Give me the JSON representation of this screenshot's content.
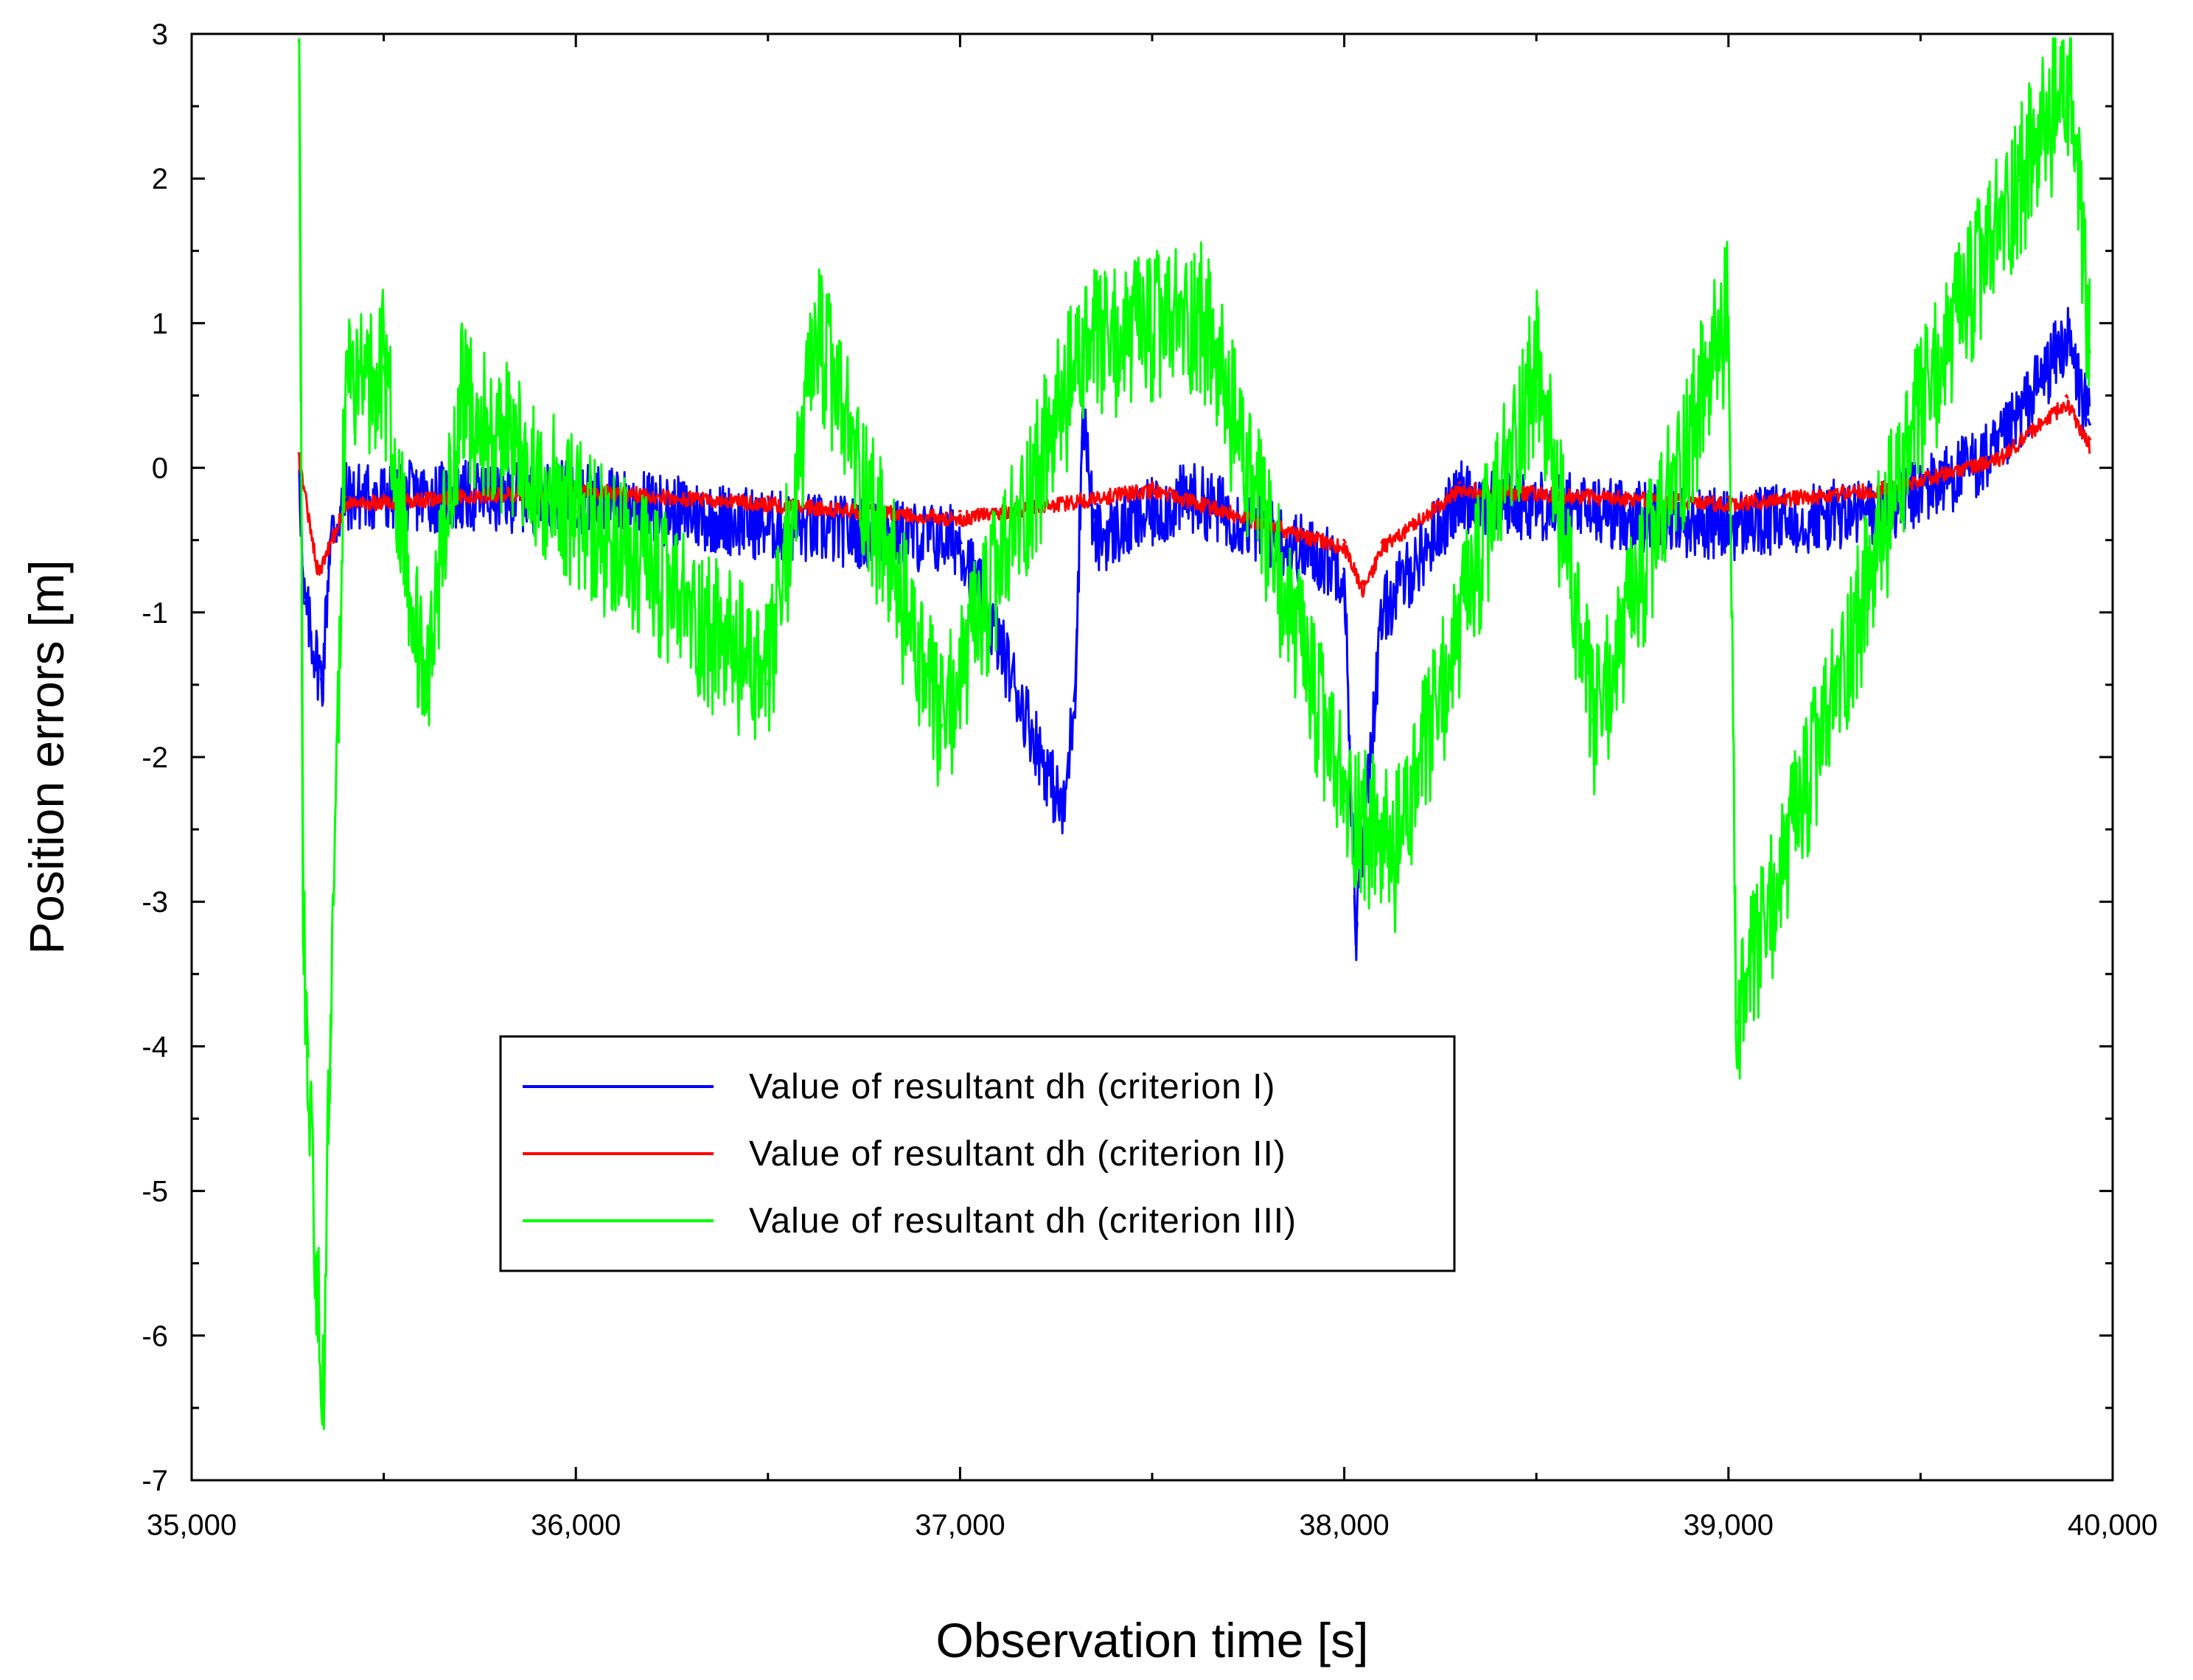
{
  "chart_data": {
    "type": "line",
    "title": "",
    "xlabel": "Observation time [s]",
    "ylabel": "Position errors [m]",
    "xlim": [
      35000,
      40000
    ],
    "ylim": [
      -7,
      3
    ],
    "xticks": [
      35000,
      36000,
      37000,
      38000,
      39000,
      40000
    ],
    "xtick_labels": [
      "35,000",
      "36,000",
      "37,000",
      "38,000",
      "39,000",
      "40,000"
    ],
    "yticks": [
      3,
      2,
      1,
      0,
      -1,
      -2,
      -3,
      -4,
      -5,
      -6,
      -7
    ],
    "ytick_labels": [
      "3",
      "2",
      "1",
      "0",
      "-1",
      "-2",
      "-3",
      "-4",
      "-5",
      "-6",
      "-7"
    ],
    "grid": false,
    "legend_position": "center-left",
    "x_range_data": [
      35280,
      39940
    ],
    "series": [
      {
        "name": "Value of resultant dh (criterion I)",
        "color": "#0000ff",
        "key_points": [
          [
            35280,
            0.1
          ],
          [
            35290,
            -0.9
          ],
          [
            35340,
            -1.5
          ],
          [
            35360,
            -0.5
          ],
          [
            35400,
            -0.2
          ],
          [
            36000,
            -0.2
          ],
          [
            36500,
            -0.4
          ],
          [
            37000,
            -0.5
          ],
          [
            37270,
            -2.4
          ],
          [
            37300,
            -1.5
          ],
          [
            37320,
            0.45
          ],
          [
            37350,
            -0.5
          ],
          [
            37600,
            -0.2
          ],
          [
            38000,
            -0.7
          ],
          [
            38030,
            -3.3
          ],
          [
            38050,
            -2.5
          ],
          [
            38100,
            -1.0
          ],
          [
            38300,
            -0.2
          ],
          [
            39000,
            -0.4
          ],
          [
            39400,
            -0.3
          ],
          [
            39700,
            0.1
          ],
          [
            39880,
            0.9
          ],
          [
            39940,
            0.3
          ]
        ]
      },
      {
        "name": "Value of resultant dh (criterion II)",
        "color": "#ff0000",
        "key_points": [
          [
            35280,
            0.1
          ],
          [
            35330,
            -0.7
          ],
          [
            35400,
            -0.2
          ],
          [
            36000,
            -0.1
          ],
          [
            36500,
            -0.2
          ],
          [
            37000,
            -0.3
          ],
          [
            37500,
            -0.1
          ],
          [
            38000,
            -0.5
          ],
          [
            38050,
            -0.8
          ],
          [
            38100,
            -0.5
          ],
          [
            38300,
            -0.1
          ],
          [
            39000,
            -0.2
          ],
          [
            39400,
            -0.1
          ],
          [
            39700,
            0.1
          ],
          [
            39880,
            0.5
          ],
          [
            39940,
            0.2
          ]
        ]
      },
      {
        "name": "Value of resultant dh (criterion III)",
        "color": "#00ff00",
        "key_points": [
          [
            35280,
            2.95
          ],
          [
            35290,
            -3.3
          ],
          [
            35300,
            -3.8
          ],
          [
            35340,
            -6.6
          ],
          [
            35360,
            -4.2
          ],
          [
            35400,
            0.5
          ],
          [
            35500,
            0.7
          ],
          [
            35610,
            -1.7
          ],
          [
            35700,
            0.5
          ],
          [
            36000,
            -0.3
          ],
          [
            36500,
            -1.5
          ],
          [
            36630,
            0.9
          ],
          [
            36950,
            -1.8
          ],
          [
            37320,
            0.8
          ],
          [
            37630,
            1.05
          ],
          [
            38000,
            -2.3
          ],
          [
            38130,
            -2.7
          ],
          [
            38500,
            0.7
          ],
          [
            38650,
            -1.8
          ],
          [
            39000,
            1.05
          ],
          [
            39020,
            -3.85
          ],
          [
            39500,
            0.4
          ],
          [
            39760,
            2.0
          ],
          [
            39890,
            2.65
          ],
          [
            39940,
            0.8
          ]
        ]
      }
    ]
  }
}
